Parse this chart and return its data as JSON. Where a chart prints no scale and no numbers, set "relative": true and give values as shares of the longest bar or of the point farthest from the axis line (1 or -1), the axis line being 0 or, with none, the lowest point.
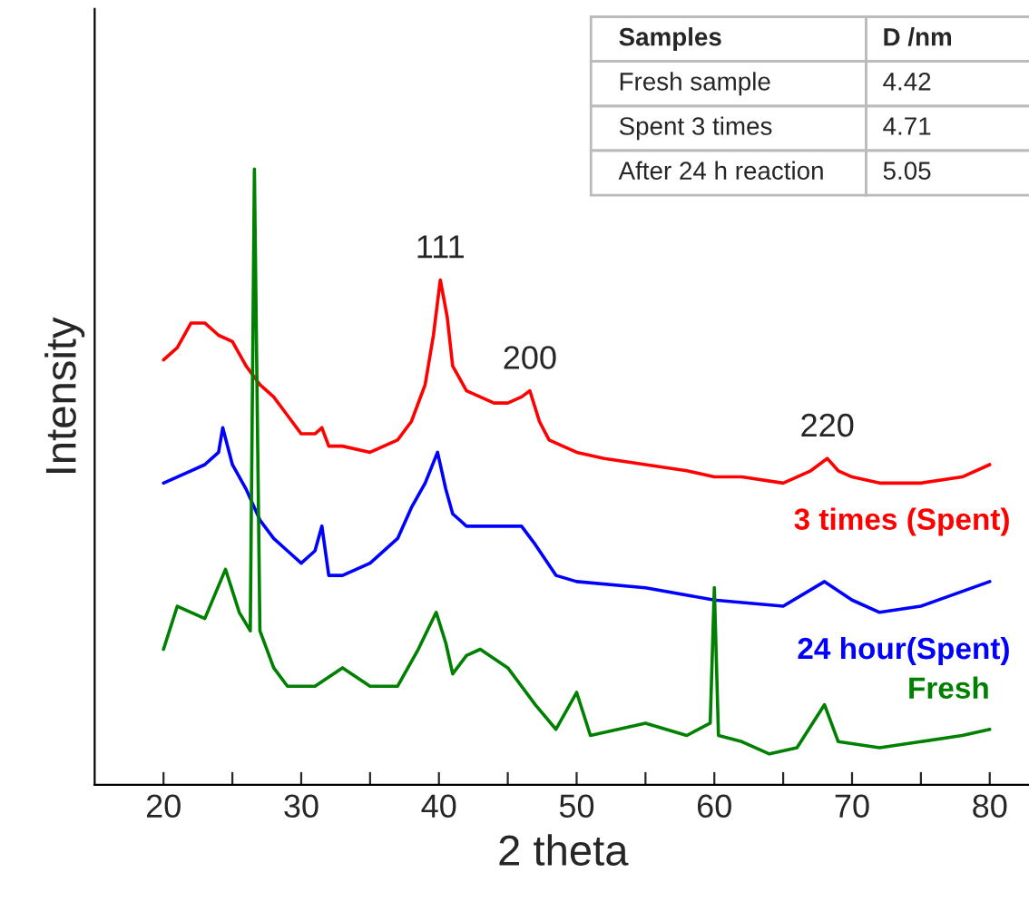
{
  "chart_data": {
    "type": "line",
    "relative": true,
    "xlabel": "2 theta",
    "ylabel": "Intensity",
    "xlim": [
      15,
      83
    ],
    "xticks": [
      20,
      {
        "value": 25,
        "label": null
      },
      30,
      {
        "value": 35,
        "label": null
      },
      40,
      {
        "value": 45,
        "label": null
      },
      50,
      {
        "value": 55,
        "label": null
      },
      60,
      {
        "value": 65,
        "label": null
      },
      70,
      {
        "value": 75,
        "label": null
      },
      80
    ],
    "legend": false,
    "grid": false,
    "marker": "none",
    "line_style": "solid",
    "series": [
      {
        "name": "3 times (Spent)",
        "color": "#ff0000",
        "x": [
          20,
          21,
          22,
          23,
          24,
          25,
          26,
          27,
          28,
          29,
          30,
          31,
          31.5,
          32,
          33,
          35,
          36,
          37,
          38,
          39,
          39.6,
          40.1,
          40.6,
          41,
          42,
          43,
          44,
          45,
          46,
          46.6,
          47.3,
          48,
          50,
          52,
          55,
          58,
          60,
          62,
          65,
          67,
          68.2,
          69,
          70,
          72,
          75,
          78,
          80
        ],
        "values": [
          0.69,
          0.71,
          0.75,
          0.75,
          0.73,
          0.72,
          0.68,
          0.65,
          0.63,
          0.6,
          0.57,
          0.57,
          0.58,
          0.55,
          0.55,
          0.54,
          0.55,
          0.56,
          0.59,
          0.65,
          0.73,
          0.82,
          0.76,
          0.68,
          0.64,
          0.63,
          0.62,
          0.62,
          0.63,
          0.64,
          0.59,
          0.56,
          0.54,
          0.53,
          0.52,
          0.51,
          0.5,
          0.5,
          0.49,
          0.51,
          0.53,
          0.51,
          0.5,
          0.49,
          0.49,
          0.5,
          0.52
        ]
      },
      {
        "name": "24 hour(Spent)",
        "color": "#0000ff",
        "x": [
          20,
          21,
          22,
          23,
          24,
          24.3,
          25,
          26,
          27,
          28,
          29,
          30,
          31,
          31.5,
          32,
          33,
          35,
          37,
          38,
          39,
          39.9,
          40.5,
          41,
          42,
          44,
          46,
          47,
          48.5,
          50,
          55,
          60,
          65,
          68,
          70,
          72,
          75,
          80
        ],
        "values": [
          0.49,
          0.5,
          0.51,
          0.52,
          0.54,
          0.58,
          0.52,
          0.48,
          0.43,
          0.4,
          0.38,
          0.36,
          0.38,
          0.42,
          0.34,
          0.34,
          0.36,
          0.4,
          0.45,
          0.49,
          0.54,
          0.48,
          0.44,
          0.42,
          0.42,
          0.42,
          0.39,
          0.34,
          0.33,
          0.32,
          0.3,
          0.29,
          0.33,
          0.3,
          0.28,
          0.29,
          0.33
        ]
      },
      {
        "name": "Fresh",
        "color": "#008000",
        "x": [
          20,
          21,
          23,
          24.5,
          25.5,
          26.3,
          26.6,
          27,
          28,
          29,
          31,
          33,
          35,
          37,
          38.5,
          39.8,
          40.5,
          41,
          42,
          43,
          45,
          47,
          48.5,
          50,
          51,
          55,
          58,
          59.7,
          60,
          60.3,
          62,
          64,
          66,
          68,
          69,
          72,
          75,
          78,
          80
        ],
        "values": [
          0.22,
          0.29,
          0.27,
          0.35,
          0.28,
          0.25,
          1.0,
          0.25,
          0.19,
          0.16,
          0.16,
          0.19,
          0.16,
          0.16,
          0.22,
          0.28,
          0.23,
          0.18,
          0.21,
          0.22,
          0.19,
          0.13,
          0.09,
          0.15,
          0.08,
          0.1,
          0.08,
          0.1,
          0.32,
          0.08,
          0.07,
          0.05,
          0.06,
          0.13,
          0.07,
          0.06,
          0.07,
          0.08,
          0.09
        ]
      }
    ],
    "annotations": [
      {
        "text": "111",
        "x": 40.1,
        "y": 0.82
      },
      {
        "text": "200",
        "x": 46.6,
        "y": 0.64
      },
      {
        "text": "220",
        "x": 68.2,
        "y": 0.53
      },
      "Samples",
      "D /nm",
      "Fresh sample",
      "4.42",
      "Spent 3 times",
      "4.71",
      "After 24 h reaction",
      "5.05"
    ]
  }
}
